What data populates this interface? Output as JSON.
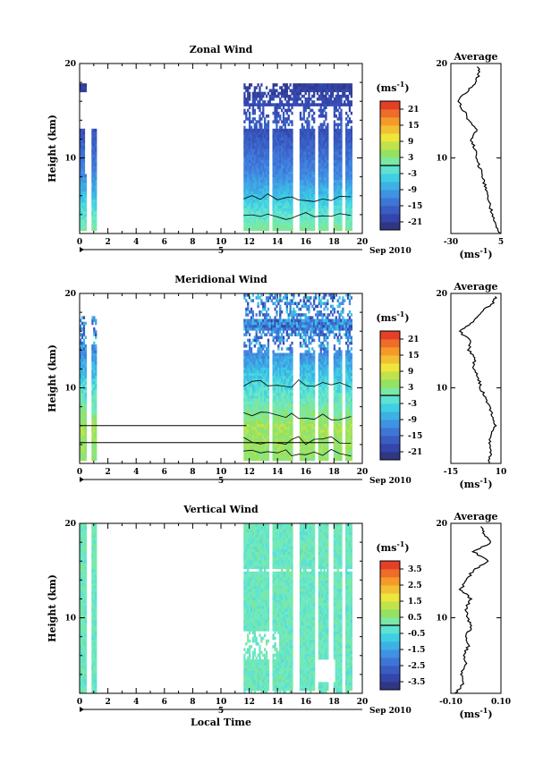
{
  "chart_data": [
    {
      "type": "heatmap",
      "title": "Zonal Wind",
      "ylabel": "Height (km)",
      "xlabel": "",
      "ylim": [
        2,
        20
      ],
      "y_ticks": [
        "20",
        "10"
      ],
      "xlim": [
        0,
        20
      ],
      "x_ticks": [
        "0",
        "2",
        "4",
        "6",
        "8",
        "10",
        "12",
        "14",
        "16",
        "18",
        "20"
      ],
      "date_axis": {
        "day": "5",
        "month_label": "Sep 2010"
      },
      "colorbar": {
        "unit": "(ms",
        "unit_exp": "-1",
        "unit_close": ")",
        "ticks": [
          "21",
          "15",
          "9",
          "3",
          "-3",
          "-9",
          "-15",
          "-21"
        ],
        "range": [
          -24,
          24
        ]
      },
      "data_segments_hours": [
        [
          0,
          1.1
        ],
        [
          11.6,
          19.2
        ]
      ],
      "average": {
        "title": "Average",
        "xlim": [
          -30,
          5
        ],
        "x_ticks": [
          "-30",
          "5"
        ],
        "y_ticks": [
          "20",
          "10"
        ],
        "xlabel": "(ms",
        "xlabel_exp": "-1",
        "xlabel_close": ")",
        "heights": [
          2,
          3,
          4,
          5,
          6,
          7,
          8,
          9,
          10,
          11,
          12,
          13,
          14,
          15,
          16,
          17,
          18,
          19,
          19.8
        ],
        "values": [
          4,
          1,
          -1,
          -3,
          -5,
          -6,
          -8,
          -10,
          -12,
          -13,
          -16,
          -12,
          -18,
          -21,
          -25,
          -19,
          -13,
          -10,
          -12
        ]
      }
    },
    {
      "type": "heatmap",
      "title": "Meridional Wind",
      "ylabel": "Height (km)",
      "xlabel": "",
      "ylim": [
        2,
        20
      ],
      "y_ticks": [
        "20",
        "10"
      ],
      "xlim": [
        0,
        20
      ],
      "x_ticks": [
        "0",
        "2",
        "4",
        "6",
        "8",
        "10",
        "12",
        "14",
        "16",
        "18",
        "20"
      ],
      "date_axis": {
        "day": "5",
        "month_label": "Sep 2010"
      },
      "colorbar": {
        "unit": "(ms",
        "unit_exp": "-1",
        "unit_close": ")",
        "ticks": [
          "21",
          "15",
          "9",
          "3",
          "-3",
          "-9",
          "-15",
          "-21"
        ],
        "range": [
          -24,
          24
        ]
      },
      "data_segments_hours": [
        [
          0,
          1.1
        ],
        [
          11.6,
          19.2
        ]
      ],
      "average": {
        "title": "Average",
        "xlim": [
          -15,
          10
        ],
        "x_ticks": [
          "-15",
          "10"
        ],
        "y_ticks": [
          "20",
          "10"
        ],
        "xlabel": "(ms",
        "xlabel_exp": "-1",
        "xlabel_close": ")",
        "heights": [
          2,
          3,
          4,
          5,
          6,
          7,
          8,
          9,
          10,
          11,
          12,
          13,
          14,
          15,
          16,
          17,
          18,
          19,
          19.8
        ],
        "values": [
          4,
          5,
          4,
          5,
          7,
          6,
          4,
          2,
          0,
          -1,
          -4,
          -3,
          -6,
          -5,
          -11,
          -4,
          0,
          6,
          8
        ]
      }
    },
    {
      "type": "heatmap",
      "title": "Vertical Wind",
      "ylabel": "Height (km)",
      "xlabel": "Local Time",
      "ylim": [
        2,
        20
      ],
      "y_ticks": [
        "20",
        "10"
      ],
      "xlim": [
        0,
        20
      ],
      "x_ticks": [
        "0",
        "2",
        "4",
        "6",
        "8",
        "10",
        "12",
        "14",
        "16",
        "18",
        "20"
      ],
      "date_axis": {
        "day": "5",
        "month_label": "Sep 2010"
      },
      "colorbar": {
        "unit": "(ms",
        "unit_exp": "-1",
        "unit_close": ")",
        "ticks": [
          "3.5",
          "2.5",
          "1.5",
          "0.5",
          "-0.5",
          "-1.5",
          "-2.5",
          "-3.5"
        ],
        "range": [
          -4,
          4
        ]
      },
      "data_segments_hours": [
        [
          0,
          1.1
        ],
        [
          11.6,
          19.2
        ]
      ],
      "average": {
        "title": "Average",
        "xlim": [
          -0.1,
          0.1
        ],
        "x_ticks": [
          "-0.10",
          "0.10"
        ],
        "y_ticks": [
          "20",
          "10"
        ],
        "xlabel": "(ms",
        "xlabel_exp": "-1",
        "xlabel_close": ")",
        "heights": [
          2,
          3,
          4,
          5,
          6,
          7,
          8,
          9,
          10,
          11,
          12,
          13,
          14,
          15,
          16,
          17,
          18,
          19,
          19.8
        ],
        "values": [
          -0.08,
          -0.05,
          -0.06,
          -0.04,
          -0.05,
          -0.03,
          -0.04,
          -0.02,
          -0.03,
          -0.04,
          -0.02,
          -0.06,
          -0.04,
          -0.01,
          0.05,
          -0.01,
          0.06,
          0.03,
          0.02
        ]
      }
    }
  ]
}
